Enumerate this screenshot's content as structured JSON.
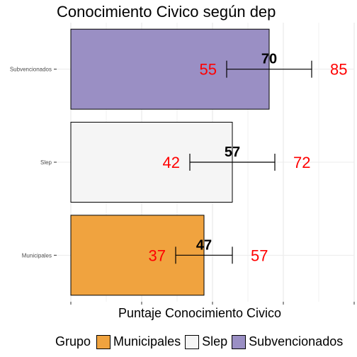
{
  "chart_data": {
    "type": "bar",
    "orientation": "horizontal",
    "title": "Conocimiento Civico según dep",
    "xlabel": "Puntaje Conocimiento Civico",
    "ylabel": "",
    "xlim": [
      -5,
      100
    ],
    "grid": true,
    "legend": {
      "title": "Grupo",
      "placement": "bottom",
      "entries": [
        "Municipales",
        "Slep",
        "Subvencionados"
      ]
    },
    "categories": [
      "Subvencionados",
      "Slep",
      "Municipales"
    ],
    "values": [
      70,
      57,
      47
    ],
    "lower": [
      55,
      42,
      37
    ],
    "upper": [
      85,
      72,
      57
    ],
    "colors": [
      "#9a8fc4",
      "#f5f5f5",
      "#f0a33f"
    ],
    "lower_label_color": "#ff0000",
    "upper_label_color": "#ff0000",
    "value_label_color": "#000000"
  }
}
